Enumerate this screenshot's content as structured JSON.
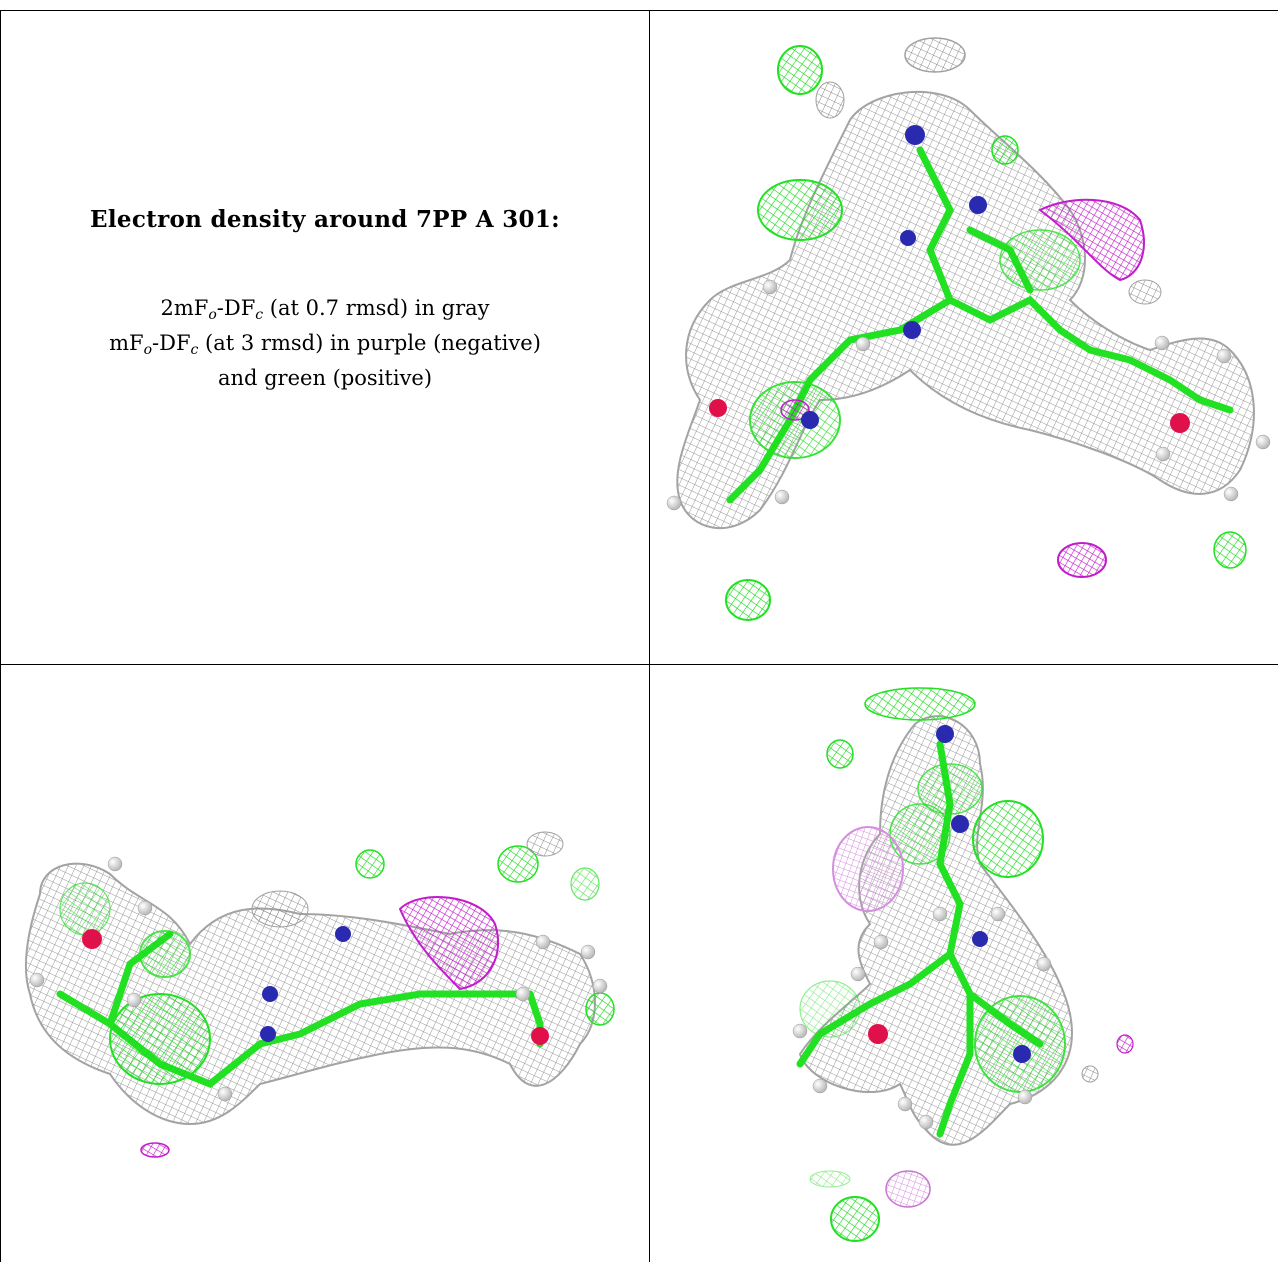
{
  "title": "Electron density around 7PP A 301:",
  "legend": {
    "line1": {
      "prefix": "2mF",
      "sub1": "o",
      "mid": "-DF",
      "sub2": "c",
      "suffix": " (at 0.7 rmsd) in gray"
    },
    "line2": {
      "prefix": "mF",
      "sub1": "o",
      "mid": "-DF",
      "sub2": "c",
      "suffix": " (at 3 rmsd) in purple (negative)"
    },
    "line3": "and green (positive)"
  },
  "colors": {
    "gray_mesh": "#a8a8a8",
    "green_mesh": "#22e022",
    "purple_mesh": "#c020c8",
    "nitrogen": "#2a2ab0",
    "oxygen": "#e0104a",
    "hydrogen": "#e8e8e8",
    "grid": "#000000"
  },
  "panels": [
    {
      "name": "view-top-right",
      "content": "electron density mesh render"
    },
    {
      "name": "view-bottom-left",
      "content": "electron density mesh render"
    },
    {
      "name": "view-bottom-right",
      "content": "electron density mesh render"
    }
  ]
}
